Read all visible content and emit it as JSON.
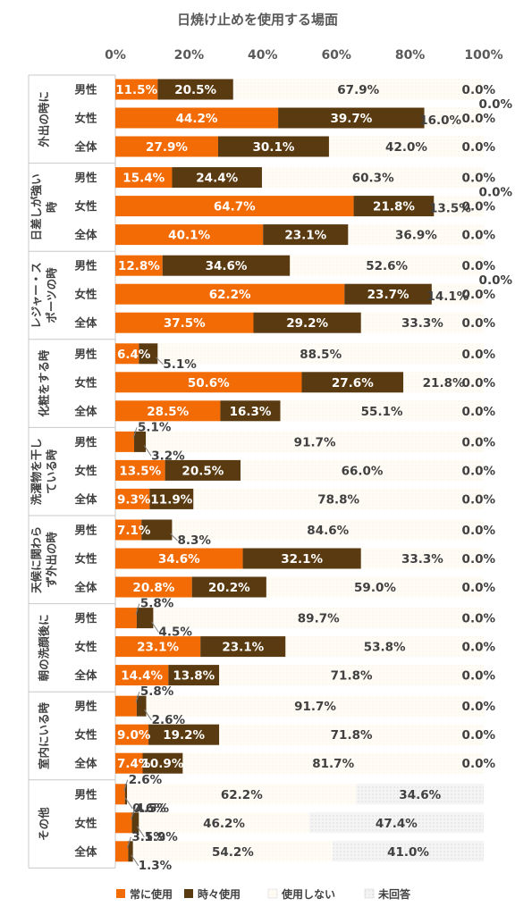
{
  "chart_data": {
    "type": "bar",
    "orientation": "horizontal",
    "stacked": true,
    "title": "日焼け止めを使用する場面",
    "x_ticks": [
      "0%",
      "20%",
      "40%",
      "60%",
      "80%",
      "100%"
    ],
    "xlim": [
      0,
      100
    ],
    "legend_position": "bottom",
    "legend": [
      "常に使用",
      "時々使用",
      "使用しない",
      "未回答"
    ],
    "colors": [
      "#F26B05",
      "#5A3A10",
      "#FFFBF3",
      "#EEEEEE"
    ],
    "groups": [
      {
        "name": "外出の時に",
        "label_lines": [
          "外出の時に"
        ],
        "rows": [
          {
            "label": "男性",
            "values": [
              "11.5%",
              "20.5%",
              "67.9%",
              "0.0%"
            ]
          },
          {
            "label": "女性",
            "values": [
              "44.2%",
              "39.7%",
              "16.0%",
              "0.0%"
            ]
          },
          {
            "label": "全体",
            "values": [
              "27.9%",
              "30.1%",
              "42.0%",
              "0.0%"
            ]
          }
        ]
      },
      {
        "name": "日差しが強い時",
        "label_lines": [
          "日差しが強い",
          "時"
        ],
        "rows": [
          {
            "label": "男性",
            "values": [
              "15.4%",
              "24.4%",
              "60.3%",
              "0.0%"
            ]
          },
          {
            "label": "女性",
            "values": [
              "64.7%",
              "21.8%",
              "13.5%",
              "0.0%"
            ]
          },
          {
            "label": "全体",
            "values": [
              "40.1%",
              "23.1%",
              "36.9%",
              "0.0%"
            ]
          }
        ]
      },
      {
        "name": "レジャー・スポーツの時",
        "label_lines": [
          "レジャー・ス",
          "ポーツの時"
        ],
        "rows": [
          {
            "label": "男性",
            "values": [
              "12.8%",
              "34.6%",
              "52.6%",
              "0.0%"
            ]
          },
          {
            "label": "女性",
            "values": [
              "62.2%",
              "23.7%",
              "14.1%",
              "0.0%"
            ]
          },
          {
            "label": "全体",
            "values": [
              "37.5%",
              "29.2%",
              "33.3%",
              "0.0%"
            ]
          }
        ]
      },
      {
        "name": "化粧をする時",
        "label_lines": [
          "化粧をする時"
        ],
        "rows": [
          {
            "label": "男性",
            "values": [
              "6.4%",
              "5.1%",
              "88.5%",
              "0.0%"
            ]
          },
          {
            "label": "女性",
            "values": [
              "50.6%",
              "27.6%",
              "21.8%",
              "0.0%"
            ]
          },
          {
            "label": "全体",
            "values": [
              "28.5%",
              "16.3%",
              "55.1%",
              "0.0%"
            ]
          }
        ]
      },
      {
        "name": "洗濯物を干している時",
        "label_lines": [
          "洗濯物を干し",
          "ている時"
        ],
        "rows": [
          {
            "label": "男性",
            "values": [
              "5.1%",
              "3.2%",
              "91.7%",
              "0.0%"
            ]
          },
          {
            "label": "女性",
            "values": [
              "13.5%",
              "20.5%",
              "66.0%",
              "0.0%"
            ]
          },
          {
            "label": "全体",
            "values": [
              "9.3%",
              "11.9%",
              "78.8%",
              "0.0%"
            ]
          }
        ]
      },
      {
        "name": "天候に関わらず外出の時",
        "label_lines": [
          "天候に関わら",
          "ず外出の時"
        ],
        "rows": [
          {
            "label": "男性",
            "values": [
              "7.1%",
              "8.3%",
              "84.6%",
              "0.0%"
            ]
          },
          {
            "label": "女性",
            "values": [
              "34.6%",
              "32.1%",
              "33.3%",
              "0.0%"
            ]
          },
          {
            "label": "全体",
            "values": [
              "20.8%",
              "20.2%",
              "59.0%",
              "0.0%"
            ]
          }
        ]
      },
      {
        "name": "朝の洗顔後に",
        "label_lines": [
          "朝の洗顔後に"
        ],
        "rows": [
          {
            "label": "男性",
            "values": [
              "5.8%",
              "4.5%",
              "89.7%",
              "0.0%"
            ]
          },
          {
            "label": "女性",
            "values": [
              "23.1%",
              "23.1%",
              "53.8%",
              "0.0%"
            ]
          },
          {
            "label": "全体",
            "values": [
              "14.4%",
              "13.8%",
              "71.8%",
              "0.0%"
            ]
          }
        ]
      },
      {
        "name": "室内にいる時",
        "label_lines": [
          "室内にいる時"
        ],
        "rows": [
          {
            "label": "男性",
            "values": [
              "5.8%",
              "2.6%",
              "91.7%",
              "0.0%"
            ]
          },
          {
            "label": "女性",
            "values": [
              "9.0%",
              "19.2%",
              "71.8%",
              "0.0%"
            ]
          },
          {
            "label": "全体",
            "values": [
              "7.4%",
              "10.9%",
              "81.7%",
              "0.0%"
            ]
          }
        ]
      },
      {
        "name": "その他",
        "label_lines": [
          "その他"
        ],
        "rows": [
          {
            "label": "男性",
            "values": [
              "2.6%",
              "0.6%",
              "62.2%",
              "34.6%"
            ]
          },
          {
            "label": "女性",
            "values": [
              "4.5%",
              "1.9%",
              "46.2%",
              "47.4%"
            ]
          },
          {
            "label": "全体",
            "values": [
              "3.5%",
              "1.3%",
              "54.2%",
              "41.0%"
            ]
          }
        ]
      }
    ]
  }
}
